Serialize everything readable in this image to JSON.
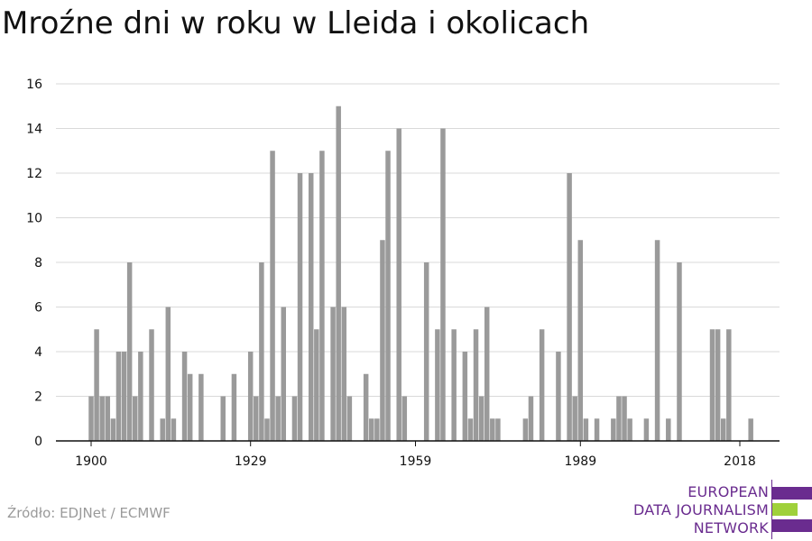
{
  "page": {
    "title": "Mroźne dni w roku w Lleida i okolicach",
    "source": "Źródło: EDJNet / ECMWF"
  },
  "logo": {
    "lines": [
      "EUROPEAN",
      "DATA JOURNALISM",
      "NETWORK"
    ],
    "colors": {
      "purple": "#6a2c8f",
      "green": "#9fd13b"
    }
  },
  "chart_data": {
    "type": "bar",
    "title": "Mroźne dni w roku w Lleida i okolicach",
    "xlabel": "",
    "ylabel": "",
    "ylim": [
      0,
      16
    ],
    "yticks": [
      0,
      2,
      4,
      6,
      8,
      10,
      12,
      14,
      16
    ],
    "xticks": [
      1900,
      1929,
      1959,
      1989,
      2018
    ],
    "grid": true,
    "bar_color": "#9a9a9a",
    "x": [
      1900,
      1901,
      1902,
      1903,
      1904,
      1905,
      1906,
      1907,
      1908,
      1909,
      1910,
      1911,
      1912,
      1913,
      1914,
      1915,
      1916,
      1917,
      1918,
      1919,
      1920,
      1921,
      1922,
      1923,
      1924,
      1925,
      1926,
      1927,
      1928,
      1929,
      1930,
      1931,
      1932,
      1933,
      1934,
      1935,
      1936,
      1937,
      1938,
      1939,
      1940,
      1941,
      1942,
      1943,
      1944,
      1945,
      1946,
      1947,
      1948,
      1949,
      1950,
      1951,
      1952,
      1953,
      1954,
      1955,
      1956,
      1957,
      1958,
      1959,
      1960,
      1961,
      1962,
      1963,
      1964,
      1965,
      1966,
      1967,
      1968,
      1969,
      1970,
      1971,
      1972,
      1973,
      1974,
      1975,
      1976,
      1977,
      1978,
      1979,
      1980,
      1981,
      1982,
      1983,
      1984,
      1985,
      1986,
      1987,
      1988,
      1989,
      1990,
      1991,
      1992,
      1993,
      1994,
      1995,
      1996,
      1997,
      1998,
      1999,
      2000,
      2001,
      2002,
      2003,
      2004,
      2005,
      2006,
      2007,
      2008,
      2009,
      2010,
      2011,
      2012,
      2013,
      2014,
      2015,
      2016,
      2017,
      2018,
      2019,
      2020
    ],
    "values": [
      2,
      5,
      2,
      2,
      1,
      4,
      4,
      8,
      2,
      4,
      0,
      5,
      0,
      1,
      6,
      1,
      0,
      4,
      3,
      0,
      3,
      0,
      0,
      0,
      2,
      0,
      3,
      0,
      0,
      4,
      2,
      8,
      1,
      13,
      2,
      6,
      0,
      2,
      12,
      0,
      12,
      5,
      13,
      0,
      6,
      15,
      6,
      2,
      0,
      0,
      3,
      1,
      1,
      9,
      13,
      0,
      14,
      2,
      0,
      0,
      0,
      8,
      0,
      5,
      14,
      0,
      5,
      0,
      4,
      1,
      5,
      2,
      6,
      1,
      1,
      0,
      0,
      0,
      0,
      1,
      2,
      0,
      5,
      0,
      0,
      4,
      0,
      12,
      2,
      9,
      1,
      0,
      1,
      0,
      0,
      1,
      2,
      2,
      1,
      0,
      0,
      1,
      0,
      9,
      0,
      1,
      0,
      8,
      0,
      0,
      0,
      0,
      0,
      5,
      5,
      1,
      5,
      0,
      0,
      0,
      1
    ]
  }
}
